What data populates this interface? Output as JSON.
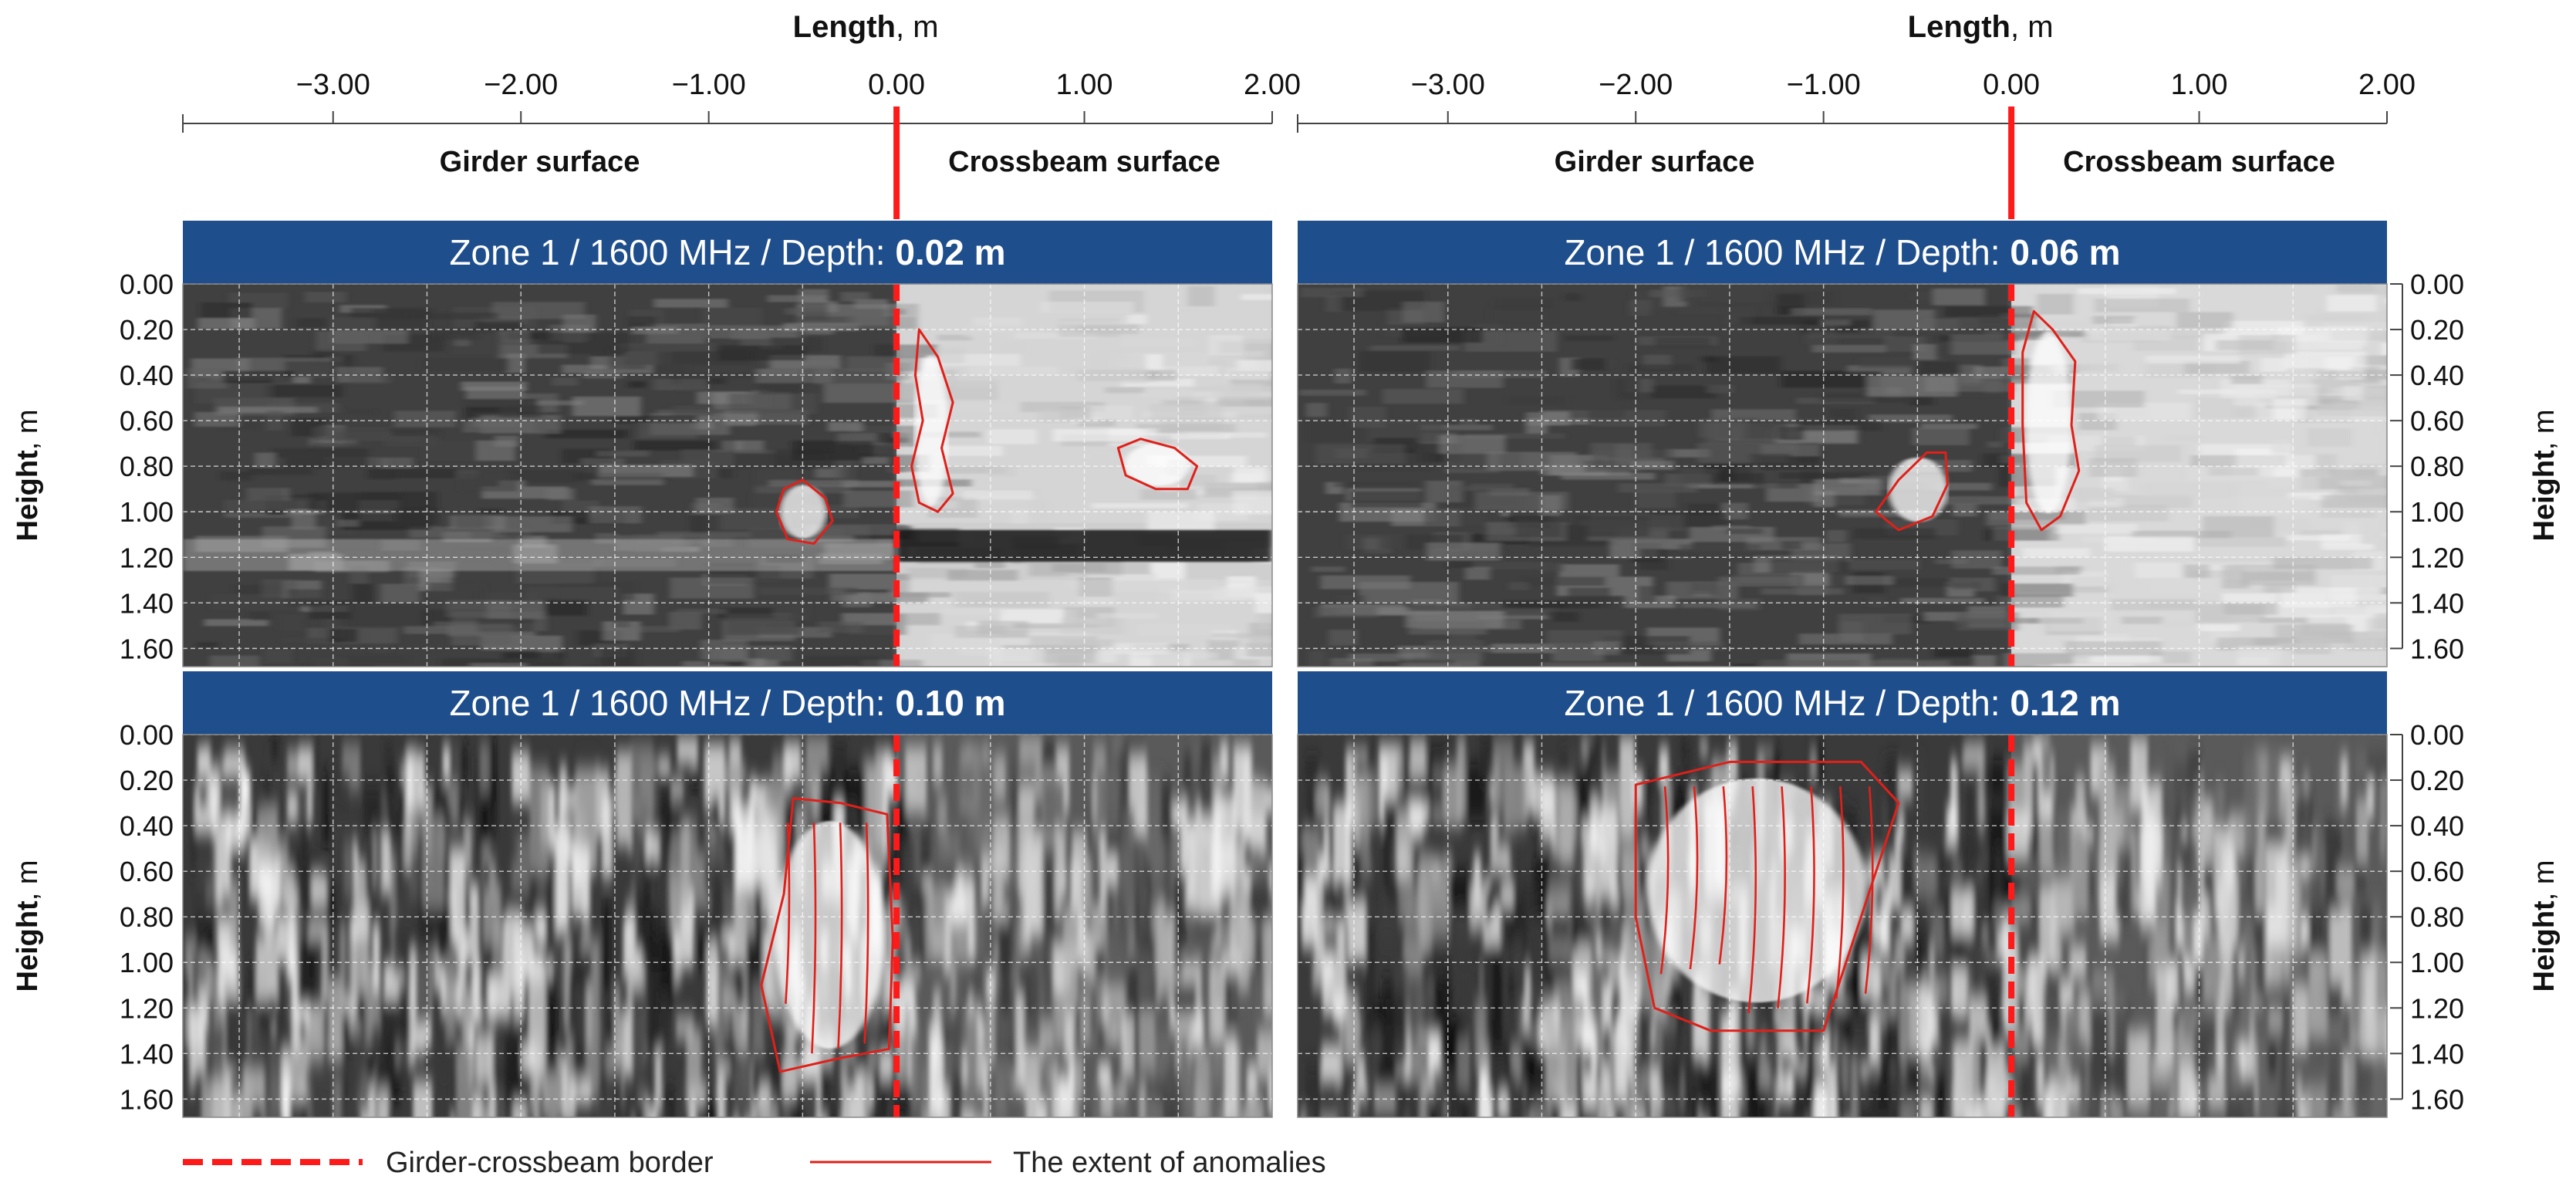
{
  "figure": {
    "x_axis": {
      "label": "Length",
      "unit": ", m",
      "ticks": [
        -3.0,
        -2.0,
        -1.0,
        0.0,
        1.0,
        2.0
      ],
      "tick_labels": [
        "−3.00",
        "−2.00",
        "−1.00",
        "0.00",
        "1.00",
        "2.00"
      ],
      "xlim": [
        -3.8,
        2.0
      ]
    },
    "y_axis": {
      "label": "Height",
      "unit": ", m",
      "ticks": [
        0.0,
        0.2,
        0.4,
        0.6,
        0.8,
        1.0,
        1.2,
        1.4,
        1.6
      ],
      "tick_labels": [
        "0.00",
        "0.20",
        "0.40",
        "0.60",
        "0.80",
        "1.00",
        "1.20",
        "1.40",
        "1.60"
      ],
      "ylim": [
        0.0,
        1.68
      ]
    },
    "regions": {
      "left": "Girder surface",
      "right": "Crossbeam surface"
    },
    "panel_title_prefix": "Zone 1 / 1600 MHz / Depth: ",
    "legend": {
      "border": "Girder-crossbeam border",
      "anomalies": "The extent of anomalies"
    },
    "colors": {
      "header_bg": "#1f4e8c",
      "border_line": "#ff1a1a",
      "anomaly_line": "#e0201a"
    }
  },
  "chart_data": [
    {
      "type": "heatmap",
      "title": "Zone 1 / 1600 MHz / Depth: 0.02 m",
      "depth": "0.02 m",
      "xlabel": "Length, m",
      "ylabel": "Height, m",
      "xlim": [
        -3.8,
        2.0
      ],
      "ylim": [
        0.0,
        1.68
      ],
      "border_x": 0.0,
      "bright_bands": [
        {
          "name": "crossbeam-upper",
          "x": [
            0.0,
            2.0
          ],
          "y": [
            0.0,
            1.05
          ],
          "level": "light"
        },
        {
          "name": "girder-horizontal",
          "x": [
            -3.8,
            0.0
          ],
          "y": [
            1.12,
            1.26
          ],
          "level": "light"
        },
        {
          "name": "crossbeam-lower",
          "x": [
            0.0,
            2.0
          ],
          "y": [
            1.3,
            1.68
          ],
          "level": "light"
        }
      ],
      "anomalies": [
        {
          "name": "anomaly-girder",
          "points": [
            [
              -0.6,
              0.9
            ],
            [
              -0.5,
              0.86
            ],
            [
              -0.38,
              0.94
            ],
            [
              -0.34,
              1.04
            ],
            [
              -0.44,
              1.14
            ],
            [
              -0.58,
              1.12
            ],
            [
              -0.64,
              1.0
            ]
          ]
        },
        {
          "name": "anomaly-crossbeam-1",
          "points": [
            [
              0.12,
              0.2
            ],
            [
              0.22,
              0.32
            ],
            [
              0.3,
              0.52
            ],
            [
              0.24,
              0.72
            ],
            [
              0.3,
              0.92
            ],
            [
              0.22,
              1.0
            ],
            [
              0.12,
              0.96
            ],
            [
              0.08,
              0.8
            ],
            [
              0.14,
              0.6
            ],
            [
              0.1,
              0.4
            ]
          ]
        },
        {
          "name": "anomaly-crossbeam-2",
          "points": [
            [
              1.18,
              0.72
            ],
            [
              1.3,
              0.68
            ],
            [
              1.48,
              0.72
            ],
            [
              1.6,
              0.8
            ],
            [
              1.55,
              0.9
            ],
            [
              1.38,
              0.9
            ],
            [
              1.22,
              0.84
            ]
          ]
        }
      ]
    },
    {
      "type": "heatmap",
      "title": "Zone 1 / 1600 MHz / Depth: 0.06 m",
      "depth": "0.06 m",
      "xlabel": "Length, m",
      "ylabel": "Height, m",
      "xlim": [
        -3.8,
        2.0
      ],
      "ylim": [
        0.0,
        1.68
      ],
      "border_x": 0.0,
      "bright_bands": [
        {
          "name": "crossbeam-surface",
          "x": [
            0.0,
            2.0
          ],
          "y": [
            0.0,
            1.68
          ],
          "level": "light"
        }
      ],
      "anomalies": [
        {
          "name": "anomaly-girder",
          "points": [
            [
              -0.45,
              0.74
            ],
            [
              -0.35,
              0.74
            ],
            [
              -0.34,
              0.88
            ],
            [
              -0.42,
              1.02
            ],
            [
              -0.6,
              1.08
            ],
            [
              -0.72,
              1.0
            ],
            [
              -0.6,
              0.86
            ]
          ]
        },
        {
          "name": "anomaly-crossbeam",
          "points": [
            [
              0.12,
              0.12
            ],
            [
              0.22,
              0.2
            ],
            [
              0.34,
              0.34
            ],
            [
              0.32,
              0.62
            ],
            [
              0.36,
              0.82
            ],
            [
              0.26,
              1.02
            ],
            [
              0.16,
              1.08
            ],
            [
              0.08,
              0.96
            ],
            [
              0.06,
              0.62
            ],
            [
              0.06,
              0.3
            ]
          ]
        }
      ]
    },
    {
      "type": "heatmap",
      "title": "Zone 1 / 1600 MHz / Depth: 0.10 m",
      "depth": "0.10 m",
      "xlabel": "Length, m",
      "ylabel": "Height, m",
      "xlim": [
        -3.8,
        2.0
      ],
      "ylim": [
        0.0,
        1.68
      ],
      "border_x": 0.0,
      "bright_bands": [],
      "anomalies": [
        {
          "name": "anomaly-girder",
          "points": [
            [
              -0.55,
              0.28
            ],
            [
              -0.3,
              0.3
            ],
            [
              -0.05,
              0.35
            ],
            [
              -0.02,
              0.9
            ],
            [
              -0.04,
              1.38
            ],
            [
              -0.3,
              1.42
            ],
            [
              -0.62,
              1.48
            ],
            [
              -0.72,
              1.1
            ],
            [
              -0.6,
              0.7
            ]
          ]
        }
      ]
    },
    {
      "type": "heatmap",
      "title": "Zone 1 / 1600 MHz / Depth: 0.12 m",
      "depth": "0.12 m",
      "xlabel": "Length, m",
      "ylabel": "Height, m",
      "xlim": [
        -3.8,
        2.0
      ],
      "ylim": [
        0.0,
        1.68
      ],
      "border_x": 0.0,
      "bright_bands": [],
      "anomalies": [
        {
          "name": "anomaly-girder",
          "points": [
            [
              -2.0,
              0.22
            ],
            [
              -1.5,
              0.12
            ],
            [
              -0.8,
              0.12
            ],
            [
              -0.6,
              0.3
            ],
            [
              -0.8,
              0.8
            ],
            [
              -1.0,
              1.3
            ],
            [
              -1.6,
              1.3
            ],
            [
              -1.9,
              1.2
            ],
            [
              -2.0,
              0.8
            ]
          ]
        }
      ]
    }
  ]
}
